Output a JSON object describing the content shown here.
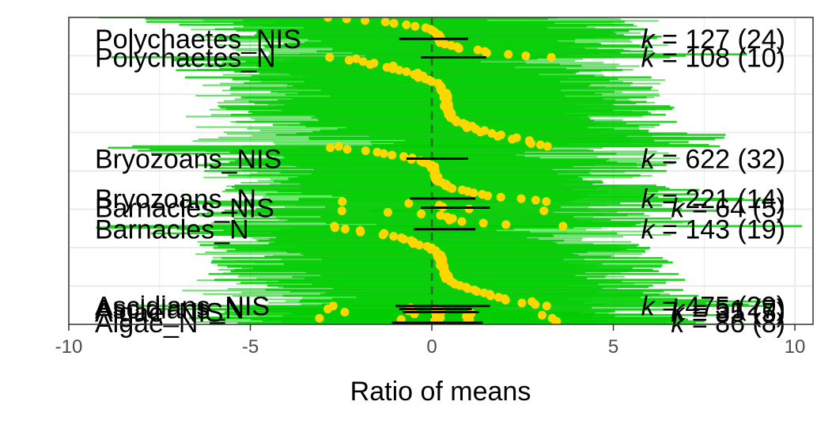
{
  "chart_data": {
    "type": "forest",
    "xlabel": "Ratio of means",
    "xlim": [
      -10,
      10.5
    ],
    "x_ticks": [
      -10,
      -5,
      0,
      5,
      10
    ],
    "x_tick_labels": [
      "-10",
      "-5",
      "0",
      "5",
      "10"
    ],
    "reference_line_x": 0,
    "grid": true,
    "colors": {
      "ci_bars": "#00cc00",
      "points": "#ffd700",
      "summary": "#000000",
      "reference": "#1a6b1a",
      "grid": "#ebebeb",
      "panel_border": "#333333"
    },
    "groups": [
      {
        "label": "Polychaetes_NIS",
        "k_text": "k",
        "k_rest": " = 127  (24)",
        "k": 127,
        "studies": 24,
        "estimate": 0.2,
        "ci": [
          -0.9,
          1.0
        ],
        "row_start": 0.0,
        "row_end": 0.13,
        "label_y": 0.07
      },
      {
        "label": "Polychaetes_N",
        "k_text": "k",
        "k_rest": " = 108  (10)",
        "k": 108,
        "studies": 10,
        "estimate": 0.4,
        "ci": [
          -0.3,
          1.5
        ],
        "row_start": 0.13,
        "row_end": 0.42,
        "label_y": 0.13
      },
      {
        "label": "Bryozoans_NIS",
        "k_text": "k",
        "k_rest": " = 622  (32)",
        "k": 622,
        "studies": 32,
        "estimate": 0.1,
        "ci": [
          -0.7,
          1.0
        ],
        "row_start": 0.42,
        "row_end": 0.6,
        "label_y": 0.46
      },
      {
        "label": "Bryozoans_N",
        "k_text": "k",
        "k_rest": " = 221  (14)",
        "k": 221,
        "studies": 14,
        "estimate": 0.2,
        "ci": [
          -0.6,
          1.2
        ],
        "row_start": 0.6,
        "row_end": 0.63,
        "label_y": 0.59
      },
      {
        "label": "Barnacles_NIS",
        "k_text": "k",
        "k_rest": " = 64  (5)",
        "k": 64,
        "studies": 5,
        "estimate": 0.5,
        "ci": [
          -0.3,
          1.6
        ],
        "row_start": 0.63,
        "row_end": 0.68,
        "label_y": 0.62
      },
      {
        "label": "Barnacles_N",
        "k_text": "k",
        "k_rest": " = 143  (19)",
        "k": 143,
        "studies": 19,
        "estimate": 0.3,
        "ci": [
          -0.5,
          1.2
        ],
        "row_start": 0.68,
        "row_end": 0.94,
        "label_y": 0.69
      },
      {
        "label": "Ascidians_NIS",
        "k_text": "k",
        "k_rest": " = 475  (29)",
        "k": 475,
        "studies": 29,
        "estimate": 0.2,
        "ci": [
          -1.0,
          1.6
        ],
        "row_start": 0.94,
        "row_end": 0.97,
        "label_y": 0.94
      },
      {
        "label": "Ascidians_N",
        "k_text": "k",
        "k_rest": " = 51  (7)",
        "k": 51,
        "studies": 7,
        "estimate": 0.1,
        "ci": [
          -0.9,
          1.1
        ],
        "row_start": 0.95,
        "row_end": 0.98,
        "label_y": 0.95
      },
      {
        "label": "Algae_NIS",
        "k_text": "k",
        "k_rest": " = 35  (5)",
        "k": 35,
        "studies": 5,
        "estimate": 0.2,
        "ci": [
          -0.8,
          1.3
        ],
        "row_start": 0.96,
        "row_end": 0.99,
        "label_y": 0.96
      },
      {
        "label": "Algae_N",
        "k_text": "k",
        "k_rest": " = 86  (8)",
        "k": 86,
        "studies": 8,
        "estimate": 0.1,
        "ci": [
          -1.1,
          1.4
        ],
        "row_start": 0.98,
        "row_end": 1.0,
        "label_y": 0.995
      }
    ]
  }
}
